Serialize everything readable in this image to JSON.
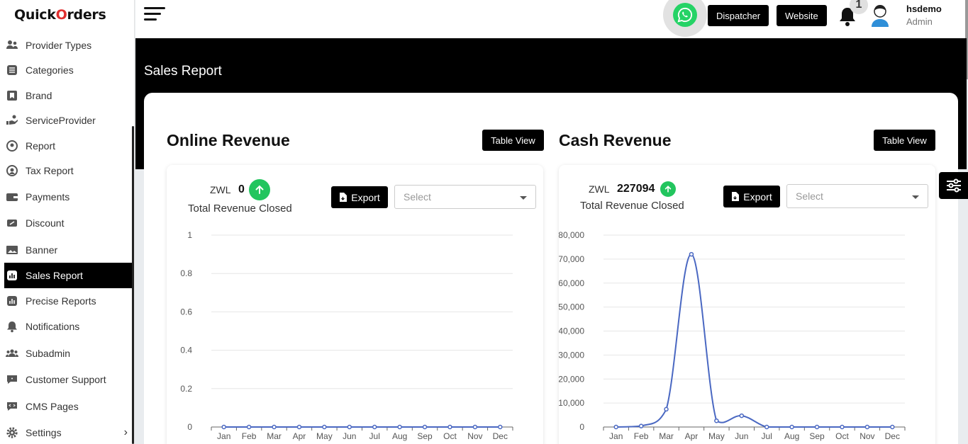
{
  "app": {
    "logo_prefix": "Quick",
    "logo_accent": "O",
    "logo_suffix": "rders"
  },
  "sidebar": {
    "items": [
      {
        "label": "Provider Types",
        "icon": "users-icon"
      },
      {
        "label": "Categories",
        "icon": "list-icon"
      },
      {
        "label": "Brand",
        "icon": "bookmark-icon"
      },
      {
        "label": "ServiceProvider",
        "icon": "hand-icon"
      },
      {
        "label": "Report",
        "icon": "report-icon"
      },
      {
        "label": "Tax Report",
        "icon": "tax-icon"
      },
      {
        "label": "Payments",
        "icon": "wallet-icon"
      },
      {
        "label": "Discount",
        "icon": "ticket-icon"
      },
      {
        "label": "Banner",
        "icon": "image-icon"
      },
      {
        "label": "Sales Report",
        "icon": "chart-icon",
        "active": true
      },
      {
        "label": "Precise Reports",
        "icon": "chart-icon"
      },
      {
        "label": "Notifications",
        "icon": "bell-icon"
      },
      {
        "label": "Subadmin",
        "icon": "group-icon"
      },
      {
        "label": "Customer Support",
        "icon": "chat-icon"
      },
      {
        "label": "CMS Pages",
        "icon": "code-icon"
      },
      {
        "label": "Settings",
        "icon": "gear-icon",
        "has_submenu": true
      }
    ]
  },
  "header": {
    "dispatcher_label": "Dispatcher",
    "website_label": "Website",
    "notification_count": "1",
    "user_name": "hsdemo",
    "user_role": "Admin"
  },
  "page": {
    "title": "Sales Report"
  },
  "online": {
    "title": "Online Revenue",
    "table_view_label": "Table View",
    "currency": "ZWL",
    "amount": "0",
    "subtitle": "Total Revenue Closed",
    "export_label": "Export",
    "select_placeholder": "Select"
  },
  "cash": {
    "title": "Cash Revenue",
    "table_view_label": "Table View",
    "currency": "ZWL",
    "amount": "227094",
    "subtitle": "Total Revenue Closed",
    "export_label": "Export",
    "select_placeholder": "Select"
  },
  "colors": {
    "accent": "#000000",
    "logo_red": "#e03030",
    "up_green": "#22c55e",
    "line_blue": "#4a68c2"
  },
  "chart_data": [
    {
      "type": "line",
      "categories": [
        "Jan",
        "Feb",
        "Mar",
        "Apr",
        "May",
        "Jun",
        "Jul",
        "Aug",
        "Sep",
        "Oct",
        "Nov",
        "Dec"
      ],
      "series": [
        {
          "values": [
            0,
            0,
            0,
            0,
            0,
            0,
            0,
            0,
            0,
            0,
            0,
            0
          ]
        }
      ],
      "yticks": [
        "0",
        "0.2",
        "0.4",
        "0.6",
        "0.8",
        "1"
      ],
      "ylim": [
        0,
        1
      ],
      "grid": true
    },
    {
      "type": "line",
      "categories": [
        "Jan",
        "Feb",
        "Mar",
        "Apr",
        "May",
        "Jun",
        "Jul",
        "Aug",
        "Sep",
        "Oct",
        "Nov",
        "Dec"
      ],
      "series": [
        {
          "values": [
            0,
            400,
            7400,
            72000,
            2600,
            4700,
            0,
            0,
            0,
            0,
            0,
            0
          ]
        }
      ],
      "yticks": [
        "0",
        "10,000",
        "20,000",
        "30,000",
        "40,000",
        "50,000",
        "60,000",
        "70,000",
        "80,000"
      ],
      "ylim": [
        0,
        80000
      ],
      "grid": true
    }
  ]
}
